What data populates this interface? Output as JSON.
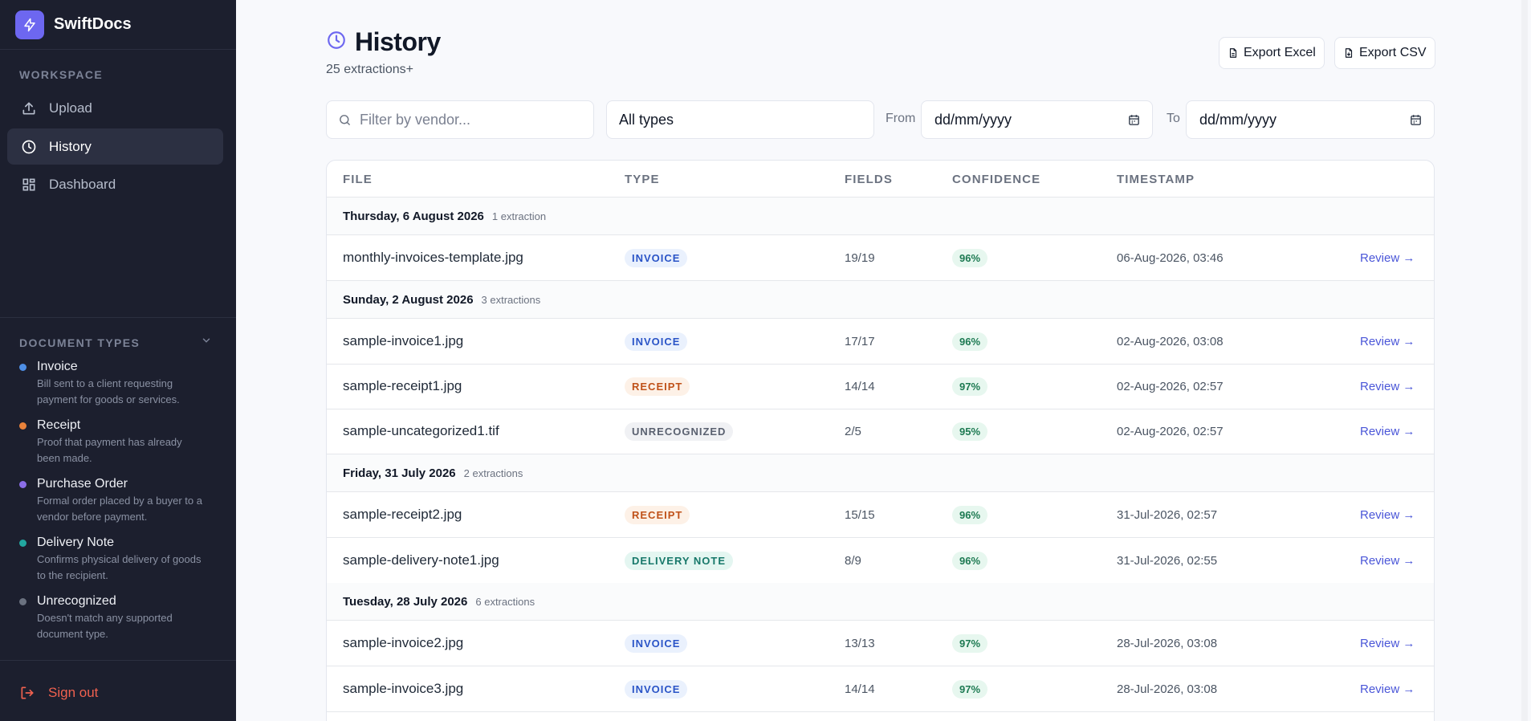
{
  "brand": {
    "name": "SwiftDocs"
  },
  "sidebar": {
    "workspace_label": "WORKSPACE",
    "nav": [
      {
        "label": "Upload",
        "icon": "upload-icon",
        "active": false
      },
      {
        "label": "History",
        "icon": "clock-icon",
        "active": true
      },
      {
        "label": "Dashboard",
        "icon": "grid-icon",
        "active": false
      }
    ],
    "doc_types_label": "DOCUMENT TYPES",
    "doc_types": [
      {
        "name": "Invoice",
        "color": "#4e8fe6",
        "desc_1": "Bill sent to a client requesting",
        "desc_2": "payment for goods or services."
      },
      {
        "name": "Receipt",
        "color": "#e9823b",
        "desc_1": "Proof that payment has already",
        "desc_2": "been made."
      },
      {
        "name": "Purchase Order",
        "color": "#8b6ee8",
        "desc_1": "Formal order placed by a buyer to a",
        "desc_2": "vendor before payment."
      },
      {
        "name": "Delivery Note",
        "color": "#22a7a0",
        "desc_1": "Confirms physical delivery of goods",
        "desc_2": "to the recipient."
      },
      {
        "name": "Unrecognized",
        "color": "#6b7280",
        "desc_1": "Doesn't match any supported",
        "desc_2": "document type."
      }
    ],
    "sign_out": "Sign out"
  },
  "header": {
    "title": "History",
    "subtitle": "25 extractions+",
    "export_excel": "Export Excel",
    "export_csv": "Export CSV"
  },
  "filters": {
    "vendor_placeholder": "Filter by vendor...",
    "type_value": "All types",
    "from_label": "From",
    "from_value": "dd/mm/yyyy",
    "to_label": "To",
    "to_value": "dd/mm/yyyy"
  },
  "table": {
    "columns": {
      "file": "FILE",
      "type": "TYPE",
      "fields": "FIELDS",
      "confidence": "CONFIDENCE",
      "timestamp": "TIMESTAMP"
    },
    "review_label": "Review →",
    "groups": [
      {
        "date": "Thursday, 6 August 2026",
        "count": "1 extraction"
      },
      {
        "date": "Sunday, 2 August 2026",
        "count": "3 extractions"
      },
      {
        "date": "Friday, 31 July 2026",
        "count": "2 extractions"
      },
      {
        "date": "Tuesday, 28 July 2026",
        "count": "6 extractions"
      }
    ],
    "rows": [
      {
        "file": "monthly-invoices-template.jpg",
        "type": "INVOICE",
        "fields": "19/19",
        "confidence": "96%",
        "timestamp": "06-Aug-2026, 03:46"
      },
      {
        "file": "sample-invoice1.jpg",
        "type": "INVOICE",
        "fields": "17/17",
        "confidence": "96%",
        "timestamp": "02-Aug-2026, 03:08"
      },
      {
        "file": "sample-receipt1.jpg",
        "type": "RECEIPT",
        "fields": "14/14",
        "confidence": "97%",
        "timestamp": "02-Aug-2026, 02:57"
      },
      {
        "file": "sample-uncategorized1.tif",
        "type": "UNRECOGNIZED",
        "fields": "2/5",
        "confidence": "95%",
        "timestamp": "02-Aug-2026, 02:57"
      },
      {
        "file": "sample-receipt2.jpg",
        "type": "RECEIPT",
        "fields": "15/15",
        "confidence": "96%",
        "timestamp": "31-Jul-2026, 02:57"
      },
      {
        "file": "sample-delivery-note1.jpg",
        "type": "DELIVERY NOTE",
        "fields": "8/9",
        "confidence": "96%",
        "timestamp": "31-Jul-2026, 02:55"
      },
      {
        "file": "sample-invoice2.jpg",
        "type": "INVOICE",
        "fields": "13/13",
        "confidence": "97%",
        "timestamp": "28-Jul-2026, 03:08"
      },
      {
        "file": "sample-invoice3.jpg",
        "type": "INVOICE",
        "fields": "14/14",
        "confidence": "97%",
        "timestamp": "28-Jul-2026, 03:08"
      }
    ]
  },
  "colors": {
    "accent": "#6d67f0",
    "link": "#4a56d8",
    "danger": "#f0614f",
    "sidebar_bg": "#1c1f2e"
  }
}
